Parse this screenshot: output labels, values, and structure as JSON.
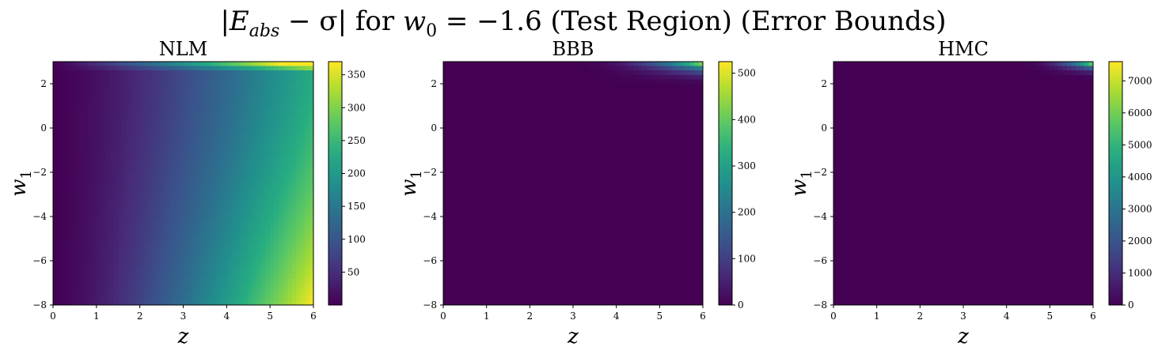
{
  "figure": {
    "title_parts": {
      "pre": "|",
      "E": "E",
      "sub": "abs",
      "mid": " − σ| for ",
      "w": "w",
      "wsub": "0",
      "post": " = −1.6 (Test Region) (Error Bounds)"
    }
  },
  "chart_data": [
    {
      "type": "heatmap",
      "title": "NLM",
      "xlabel": "z",
      "ylabel_parts": {
        "var": "w",
        "sub": "1"
      },
      "xlim": [
        0,
        6
      ],
      "ylim": [
        -8,
        3
      ],
      "x_ticks": [
        0,
        1,
        2,
        3,
        4,
        5,
        6
      ],
      "y_ticks": [
        -8,
        -6,
        -4,
        -2,
        0,
        2
      ],
      "colorbar": {
        "min": 0,
        "max": 370,
        "ticks": [
          50,
          100,
          150,
          200,
          250,
          300,
          350
        ]
      },
      "colormap": "viridis",
      "pattern": "increasing with z; highest at large z and low w1 (~370); bright band near w1≈3"
    },
    {
      "type": "heatmap",
      "title": "BBB",
      "xlabel": "z",
      "ylabel_parts": {
        "var": "w",
        "sub": "1"
      },
      "xlim": [
        0,
        6
      ],
      "ylim": [
        -8,
        3
      ],
      "x_ticks": [
        0,
        1,
        2,
        3,
        4,
        5,
        6
      ],
      "y_ticks": [
        -8,
        -6,
        -4,
        -2,
        0,
        2
      ],
      "colorbar": {
        "min": 0,
        "max": 525,
        "ticks": [
          0,
          100,
          200,
          300,
          400,
          500
        ]
      },
      "colormap": "viridis",
      "pattern": "near zero everywhere except top-right corner (z≈6, w1≈3) reaching ~525"
    },
    {
      "type": "heatmap",
      "title": "HMC",
      "xlabel": "z",
      "ylabel_parts": {
        "var": "w",
        "sub": "1"
      },
      "xlim": [
        0,
        6
      ],
      "ylim": [
        -8,
        3
      ],
      "x_ticks": [
        0,
        1,
        2,
        3,
        4,
        5,
        6
      ],
      "y_ticks": [
        -8,
        -6,
        -4,
        -2,
        0,
        2
      ],
      "colorbar": {
        "min": 0,
        "max": 7600,
        "ticks": [
          0,
          1000,
          2000,
          3000,
          4000,
          5000,
          6000,
          7000
        ]
      },
      "colormap": "viridis",
      "pattern": "near zero everywhere except top-right corner (z≈6, w1≈3) reaching ~7600"
    }
  ]
}
